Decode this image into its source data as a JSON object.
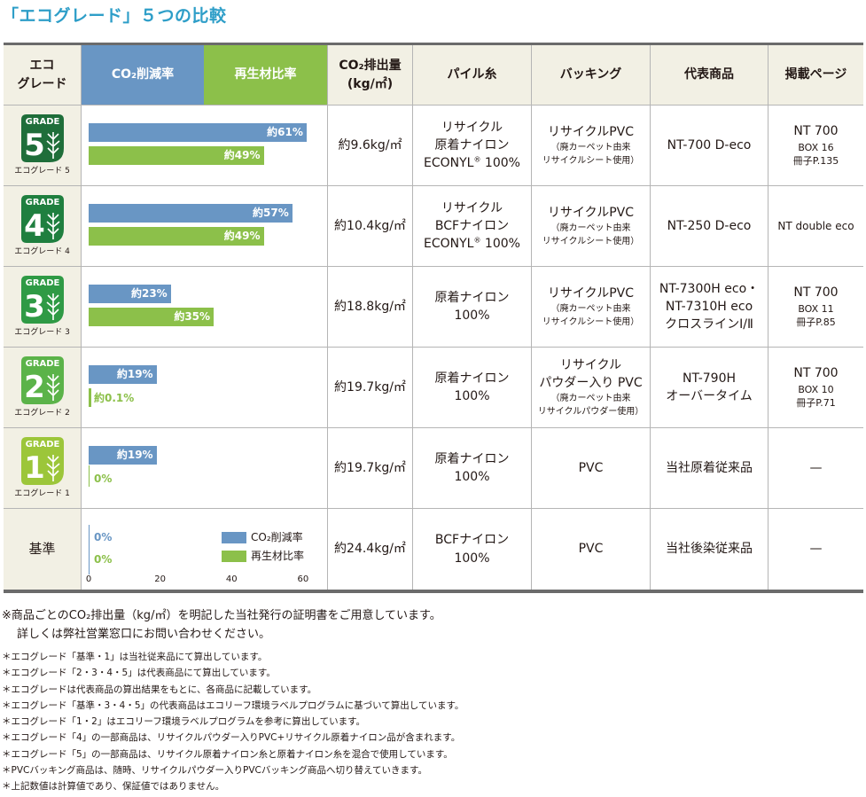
{
  "title": "「エコグレード」５つの比較",
  "header": {
    "eco_grade": "エコ\nグレード",
    "co2_reduction": "CO₂削減率",
    "recycled_ratio": "再生材比率",
    "co2_emission": "CO₂排出量\n(kg/㎡)",
    "pile_yarn": "パイル糸",
    "backing": "バッキング",
    "representative": "代表商品",
    "page": "掲載ページ"
  },
  "colors": {
    "co2": "#6996c4",
    "recycled": "#8cc04a",
    "title": "#2e9ec8",
    "header_bg": "#f2f0e4"
  },
  "rows": [
    {
      "grade_icon": "grade-5-leaf-icon",
      "grade_label": "エコグレード 5",
      "co2_label": "約61%",
      "rec_label": "約49%",
      "emission": "約9.6kg/㎡",
      "pile_lines": [
        "リサイクル",
        "原着ナイロン",
        "ECONYL® 100%"
      ],
      "backing_main": [
        "リサイクルPVC"
      ],
      "backing_sub": [
        "（廃カーペット由来",
        "リサイクルシート使用）"
      ],
      "product": [
        "NT-700 D-eco"
      ],
      "page_main": "NT 700",
      "page_sub": [
        "BOX 16",
        "冊子P.135"
      ]
    },
    {
      "grade_icon": "grade-4-leaf-icon",
      "grade_label": "エコグレード 4",
      "co2_label": "約57%",
      "rec_label": "約49%",
      "emission": "約10.4kg/㎡",
      "pile_lines": [
        "リサイクル",
        "BCFナイロン",
        "ECONYL® 100%"
      ],
      "backing_main": [
        "リサイクルPVC"
      ],
      "backing_sub": [
        "（廃カーペット由来",
        "リサイクルシート使用）"
      ],
      "product": [
        "NT-250 D-eco"
      ],
      "page_main": "",
      "page_sub": [
        "NT double eco"
      ]
    },
    {
      "grade_icon": "grade-3-leaf-icon",
      "grade_label": "エコグレード 3",
      "co2_label": "約23%",
      "rec_label": "約35%",
      "emission": "約18.8kg/㎡",
      "pile_lines": [
        "原着ナイロン",
        "100%"
      ],
      "backing_main": [
        "リサイクルPVC"
      ],
      "backing_sub": [
        "（廃カーペット由来",
        "リサイクルシート使用）"
      ],
      "product": [
        "NT-7300H eco・",
        "NT-7310H eco",
        "クロスラインⅠ/Ⅱ"
      ],
      "page_main": "NT 700",
      "page_sub": [
        "BOX 11",
        "冊子P.85"
      ]
    },
    {
      "grade_icon": "grade-2-leaf-icon",
      "grade_label": "エコグレード 2",
      "co2_label": "約19%",
      "rec_label": "約0.1%",
      "emission": "約19.7kg/㎡",
      "pile_lines": [
        "原着ナイロン",
        "100%"
      ],
      "backing_main": [
        "リサイクル",
        "パウダー入り PVC"
      ],
      "backing_sub": [
        "（廃カーペット由来",
        "リサイクルパウダー使用）"
      ],
      "product": [
        "NT-790H",
        "オーバータイム"
      ],
      "page_main": "NT 700",
      "page_sub": [
        "BOX 10",
        "冊子P.71"
      ]
    },
    {
      "grade_icon": "grade-1-leaf-icon",
      "grade_label": "エコグレード 1",
      "co2_label": "約19%",
      "rec_label": "0%",
      "emission": "約19.7kg/㎡",
      "pile_lines": [
        "原着ナイロン",
        "100%"
      ],
      "backing_main": [
        "PVC"
      ],
      "backing_sub": [],
      "product": [
        "当社原着従来品"
      ],
      "page_main": "—",
      "page_sub": []
    },
    {
      "grade_text": "基準",
      "co2_label": "0%",
      "rec_label": "0%",
      "emission": "約24.4kg/㎡",
      "pile_lines": [
        "BCFナイロン",
        "100%"
      ],
      "backing_main": [
        "PVC"
      ],
      "backing_sub": [],
      "product": [
        "当社後染従来品"
      ],
      "page_main": "—",
      "page_sub": []
    }
  ],
  "chart_data": {
    "type": "bar",
    "categories": [
      "エコグレード 5",
      "エコグレード 4",
      "エコグレード 3",
      "エコグレード 2",
      "エコグレード 1",
      "基準"
    ],
    "series": [
      {
        "name": "CO₂削減率",
        "values": [
          61,
          57,
          23,
          19,
          19,
          0
        ]
      },
      {
        "name": "再生材比率",
        "values": [
          49,
          49,
          35,
          0.1,
          0,
          0
        ]
      }
    ],
    "xlim": [
      0,
      65
    ],
    "ticks": [
      "0",
      "20",
      "40",
      "60"
    ],
    "legend": [
      "CO₂削減率",
      "再生材比率"
    ]
  },
  "notes": {
    "main": [
      "※商品ごとのCO₂排出量（kg/㎡）を明記した当社発行の証明書をご用意しています。",
      "詳しくは弊社営業窓口にお問い合わせください。"
    ],
    "small": [
      "＊エコグレード「基準・1」は当社従来品にて算出しています。",
      "＊エコグレード「2・3・4・5」は代表商品にて算出しています。",
      "＊エコグレードは代表商品の算出結果をもとに、各商品に記載しています。",
      "＊エコグレード「基準・3・4・5」の代表商品はエコリーフ環境ラベルプログラムに基づいて算出しています。",
      "＊エコグレード「1・2」はエコリーフ環境ラベルプログラムを参考に算出しています。",
      "＊エコグレード「4」の一部商品は、リサイクルパウダー入りPVC+リサイクル原着ナイロン品が含まれます。",
      "＊エコグレード「5」の一部商品は、リサイクル原着ナイロン糸と原着ナイロン糸を混合で使用しています。",
      "＊PVCバッキング商品は、随時、リサイクルパウダー入りPVCバッキング商品へ切り替えていきます。",
      "＊上記数値は計算値であり、保証値ではありません。"
    ]
  }
}
